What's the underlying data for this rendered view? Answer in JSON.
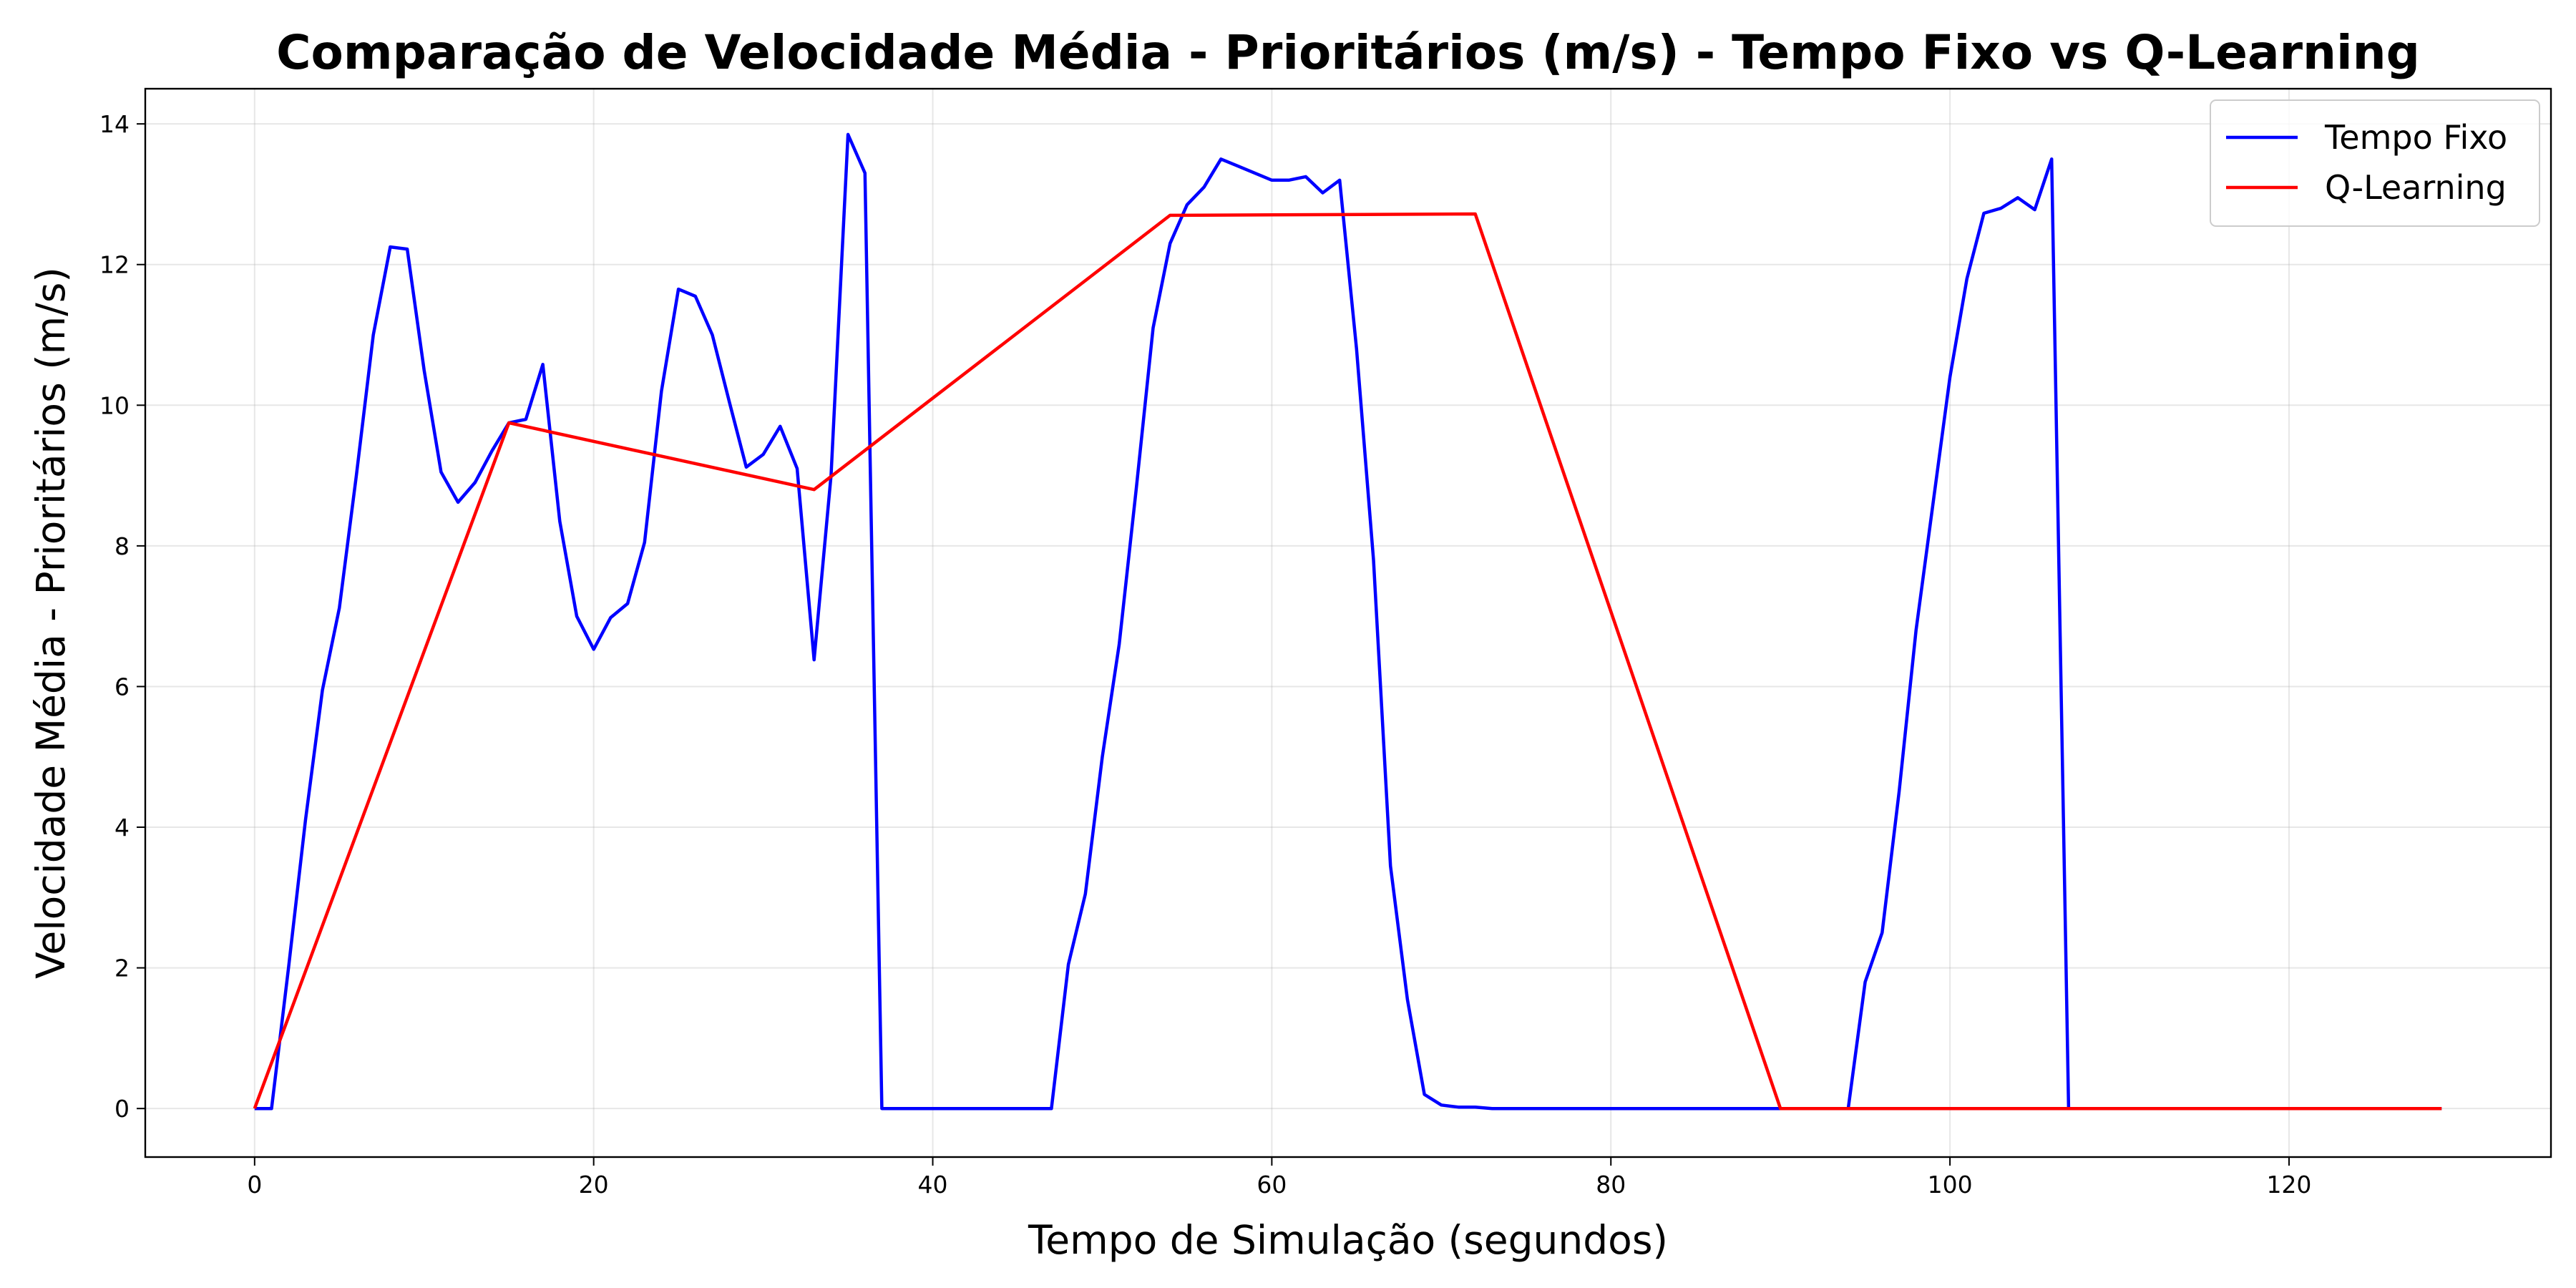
{
  "chart_data": {
    "type": "line",
    "title": "Comparação de Velocidade Média - Prioritários (m/s) - Tempo Fixo vs Q-Learning",
    "xlabel": "Tempo de Simulação (segundos)",
    "ylabel": "Velocidade Média - Prioritários (m/s)",
    "xlim": [
      -6.45,
      135.45
    ],
    "ylim": [
      -0.69,
      14.5
    ],
    "xticks": [
      0,
      20,
      40,
      60,
      80,
      100,
      120
    ],
    "yticks": [
      0,
      2,
      4,
      6,
      8,
      10,
      12,
      14
    ],
    "grid": true,
    "legend_position": "top-right",
    "series": [
      {
        "name": "Tempo Fixo",
        "color": "#0000ff",
        "x": [
          0,
          1,
          2,
          3,
          4,
          5,
          6,
          7,
          8,
          9,
          10,
          11,
          12,
          13,
          14,
          15,
          16,
          17,
          18,
          19,
          20,
          21,
          22,
          23,
          24,
          25,
          26,
          27,
          28,
          29,
          30,
          31,
          32,
          33,
          34,
          35,
          36,
          37,
          38,
          39,
          40,
          41,
          42,
          43,
          44,
          45,
          46,
          47,
          48,
          49,
          50,
          51,
          52,
          53,
          54,
          55,
          56,
          57,
          58,
          59,
          60,
          61,
          62,
          63,
          64,
          65,
          66,
          67,
          68,
          69,
          70,
          71,
          72,
          73,
          74,
          75,
          76,
          77,
          78,
          79,
          80,
          81,
          82,
          83,
          84,
          85,
          86,
          87,
          88,
          89,
          90,
          91,
          92,
          93,
          94,
          95,
          96,
          97,
          98,
          99,
          100,
          101,
          102,
          103,
          104,
          105,
          106,
          107,
          108,
          109,
          110,
          111,
          112,
          113,
          114,
          115,
          116,
          117,
          118,
          119,
          120,
          121,
          122,
          123,
          124,
          125,
          126,
          127,
          128,
          129
        ],
        "y": [
          0,
          0,
          2.0,
          4.1,
          5.95,
          7.12,
          9.0,
          11.0,
          12.25,
          12.22,
          10.5,
          9.05,
          8.62,
          8.9,
          9.35,
          9.75,
          9.8,
          10.58,
          8.35,
          7.0,
          6.53,
          6.98,
          7.18,
          8.05,
          10.2,
          11.65,
          11.55,
          11.0,
          10.05,
          9.12,
          9.3,
          9.7,
          9.1,
          6.38,
          9.0,
          13.85,
          13.3,
          0,
          0,
          0,
          0,
          0,
          0,
          0,
          0,
          0,
          0,
          0,
          2.05,
          3.05,
          5.0,
          6.6,
          8.8,
          11.1,
          12.3,
          12.85,
          13.1,
          13.5,
          13.4,
          13.3,
          13.2,
          13.2,
          13.25,
          13.02,
          13.2,
          10.8,
          7.8,
          3.45,
          1.55,
          0.2,
          0.05,
          0.02,
          0.02,
          0,
          0,
          0,
          0,
          0,
          0,
          0,
          0,
          0,
          0,
          0,
          0,
          0,
          0,
          0,
          0,
          0,
          0,
          0,
          0,
          0,
          0,
          1.8,
          2.5,
          4.5,
          6.8,
          8.6,
          10.4,
          11.8,
          12.73,
          12.8,
          12.95,
          12.78,
          13.5,
          0,
          0,
          0,
          0,
          0,
          0,
          0,
          0,
          0,
          0,
          0,
          0,
          0,
          0,
          0,
          0,
          0,
          0,
          0,
          0,
          0,
          0,
          0
        ]
      },
      {
        "name": "Q-Learning",
        "color": "#ff0000",
        "x": [
          0,
          15,
          33,
          54,
          72,
          90,
          129
        ],
        "y": [
          0,
          9.75,
          8.8,
          12.7,
          12.72,
          0,
          0
        ]
      }
    ]
  }
}
